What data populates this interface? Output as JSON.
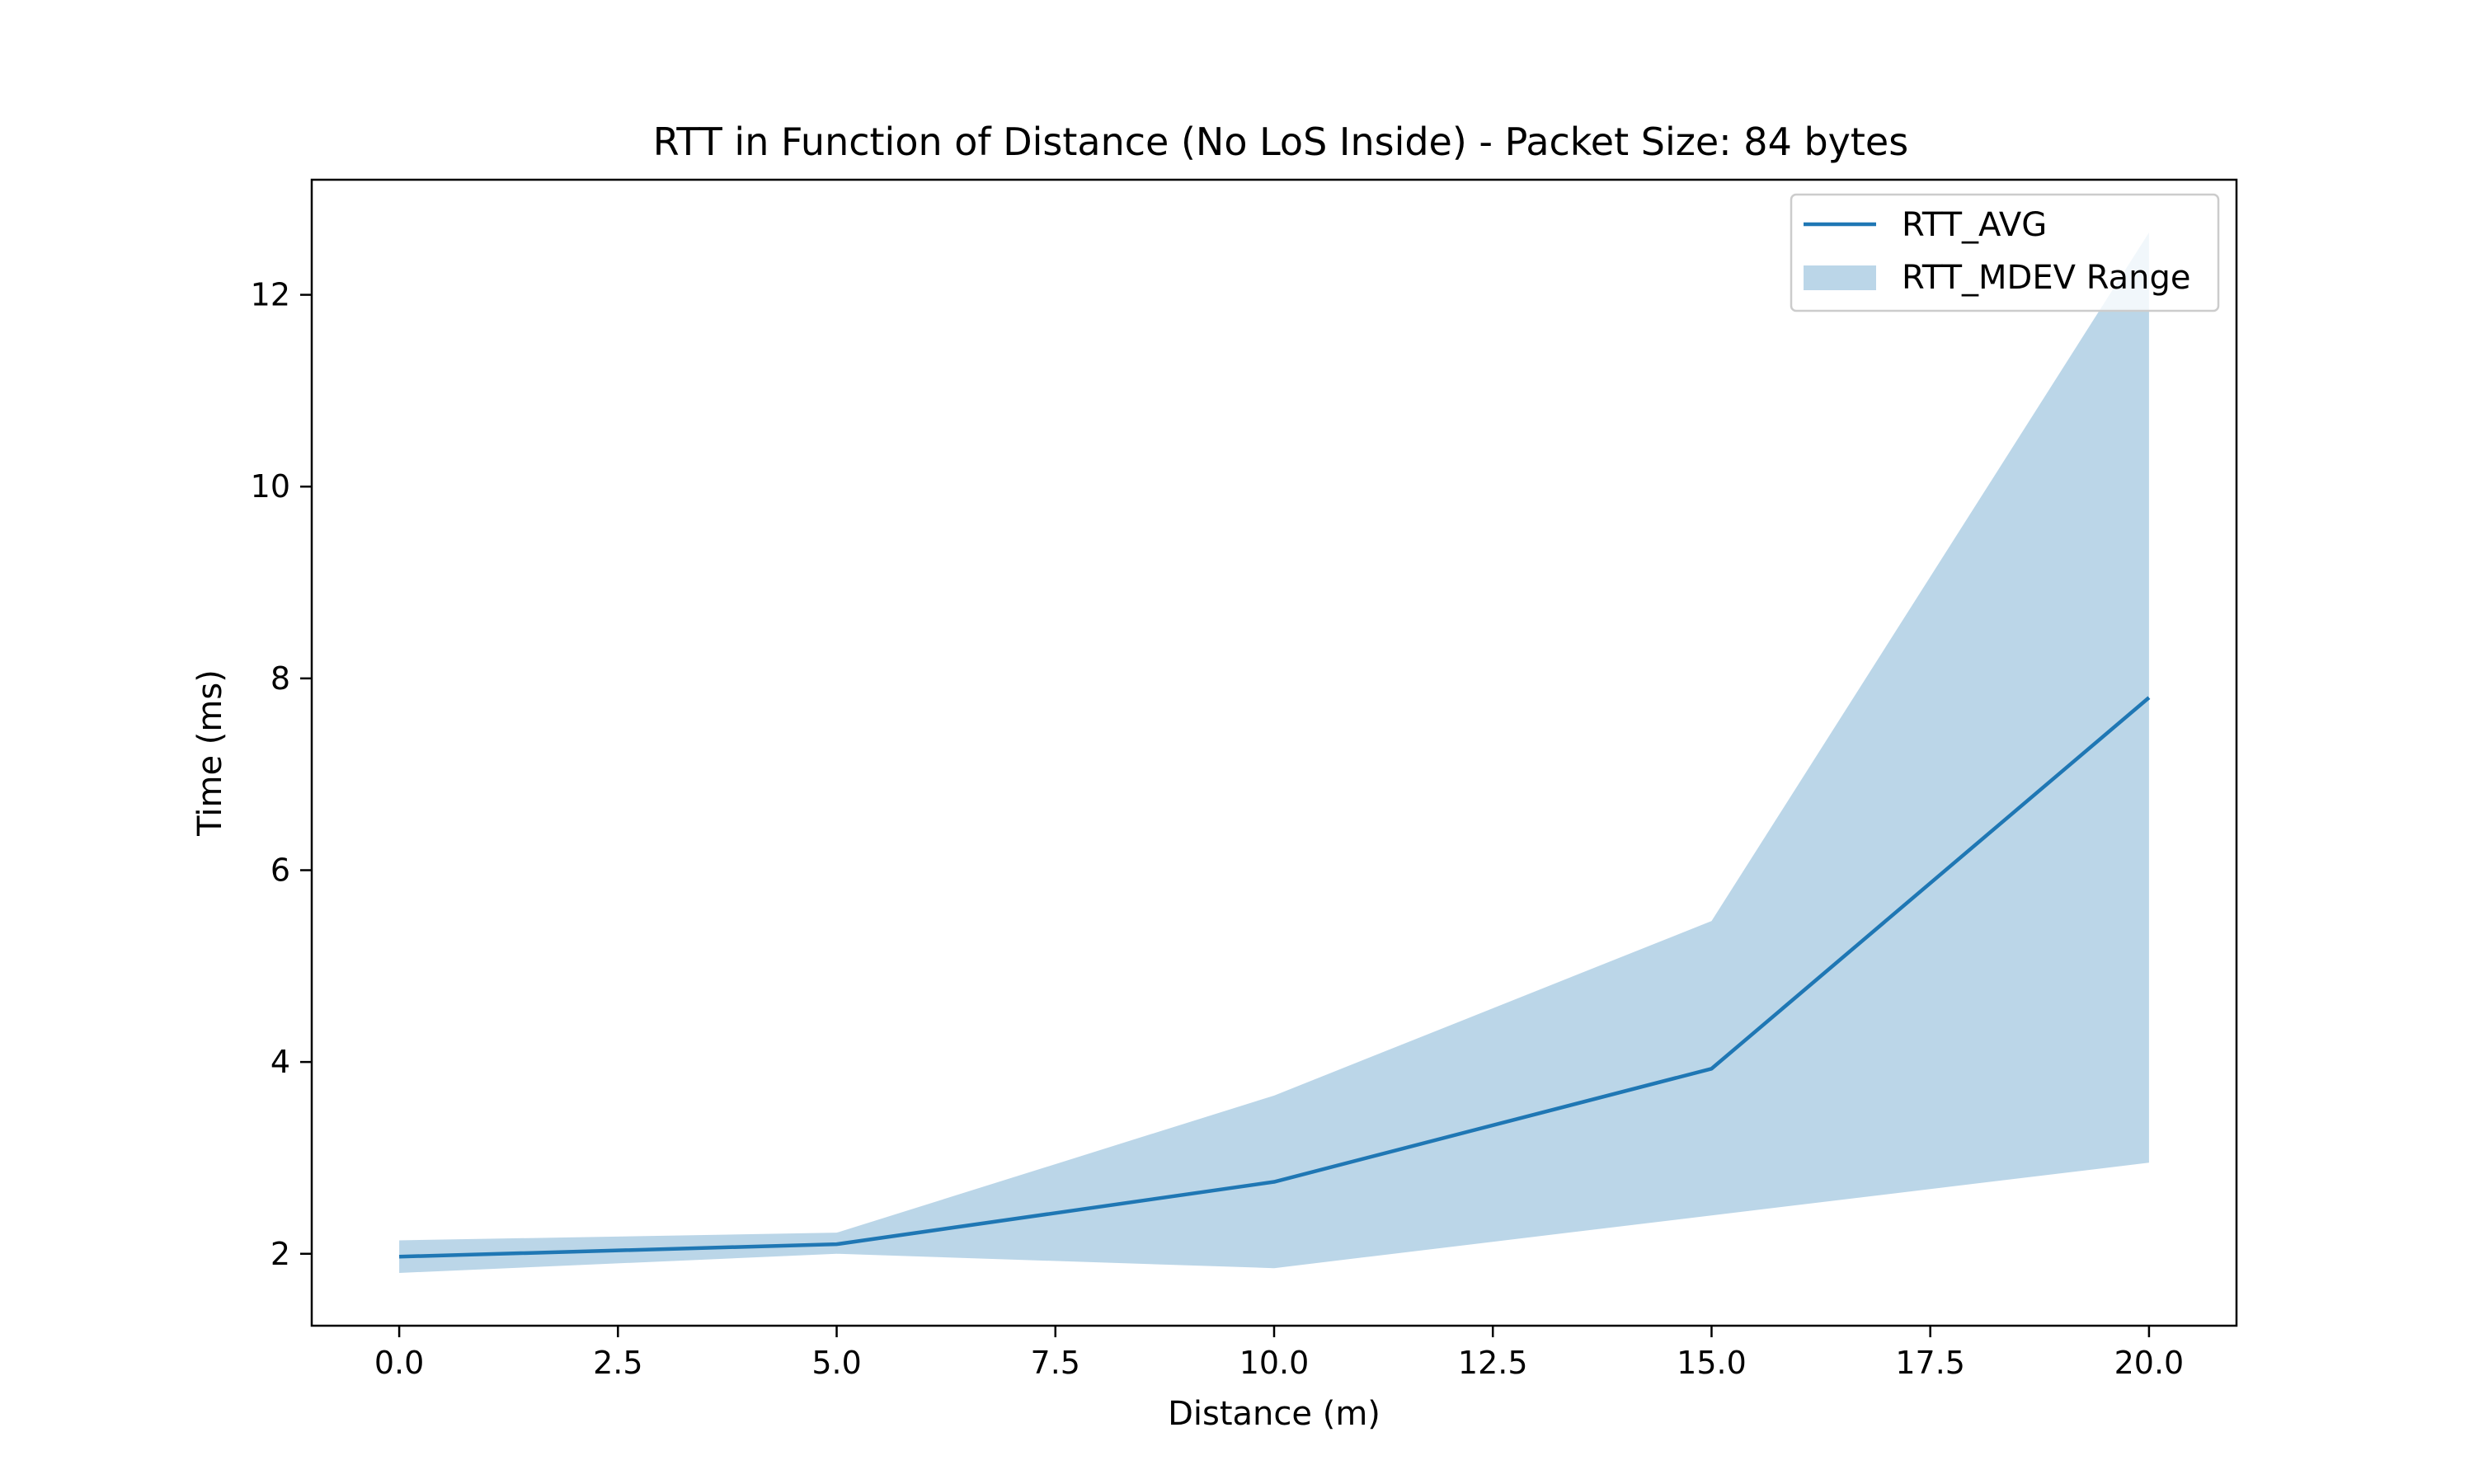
{
  "chart_data": {
    "type": "line",
    "title": "RTT in Function of Distance (No LoS Inside) - Packet Size: 84 bytes",
    "xlabel": "Distance (m)",
    "ylabel": "Time (ms)",
    "xlim": [
      -1.0,
      21.0
    ],
    "ylim": [
      1.25,
      13.2
    ],
    "xticks": [
      0.0,
      2.5,
      5.0,
      7.5,
      10.0,
      12.5,
      15.0,
      17.5,
      20.0
    ],
    "xtick_labels": [
      "0.0",
      "2.5",
      "5.0",
      "7.5",
      "10.0",
      "12.5",
      "15.0",
      "17.5",
      "20.0"
    ],
    "yticks": [
      2,
      4,
      6,
      8,
      10,
      12
    ],
    "ytick_labels": [
      "2",
      "4",
      "6",
      "8",
      "10",
      "12"
    ],
    "grid": false,
    "legend_position": "top-right",
    "series": [
      {
        "name": "RTT_AVG",
        "kind": "line",
        "color": "#1f77b4",
        "x": [
          0,
          5,
          10,
          15,
          20
        ],
        "y": [
          1.97,
          2.1,
          2.75,
          3.93,
          7.8
        ]
      }
    ],
    "band": {
      "name": "RTT_MDEV Range",
      "color": "#1f77b4",
      "opacity": 0.3,
      "x": [
        0,
        5,
        10,
        15,
        20
      ],
      "lower": [
        1.8,
        2.0,
        1.85,
        2.4,
        2.95
      ],
      "upper": [
        2.14,
        2.22,
        3.65,
        5.47,
        12.65
      ]
    }
  }
}
